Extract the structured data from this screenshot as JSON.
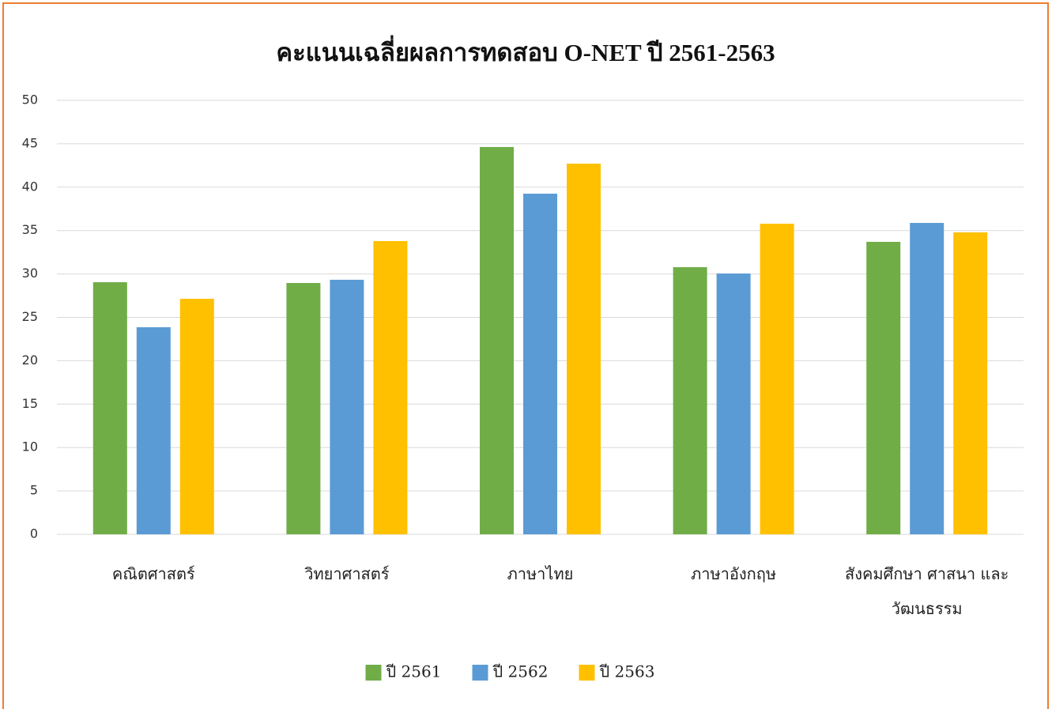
{
  "chart_data": {
    "type": "bar",
    "title": "คะแนนเฉลี่ยผลการทดสอบ O-NET  ปี  2561-2563",
    "categories": [
      "คณิตศาสตร์",
      "วิทยาศาสตร์",
      "ภาษาไทย",
      "ภาษาอังกฤษ",
      "สังคมศึกษา ศาสนา และวัฒนธรรม"
    ],
    "series": [
      {
        "name": "ปี 2561",
        "color": "#70ad47",
        "values": [
          29.05,
          28.96,
          44.63,
          30.78,
          33.7
        ]
      },
      {
        "name": "ปี 2562",
        "color": "#5b9bd5",
        "values": [
          23.86,
          29.33,
          39.25,
          30.05,
          35.88
        ]
      },
      {
        "name": "ปี 2563",
        "color": "#ffc000",
        "values": [
          27.14,
          33.79,
          42.71,
          35.79,
          34.79
        ]
      }
    ],
    "ylim": [
      0,
      50
    ],
    "yticks": [
      0,
      5,
      10,
      15,
      20,
      25,
      30,
      35,
      40,
      45,
      50
    ],
    "grid": true,
    "legend": "bottom"
  }
}
